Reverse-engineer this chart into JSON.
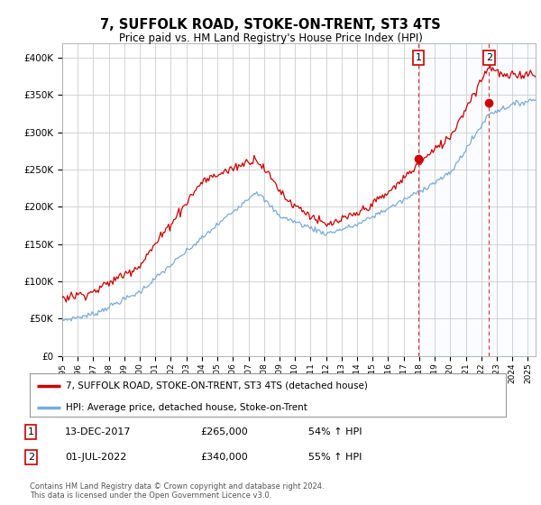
{
  "title": "7, SUFFOLK ROAD, STOKE-ON-TRENT, ST3 4TS",
  "subtitle": "Price paid vs. HM Land Registry's House Price Index (HPI)",
  "ylabel_ticks": [
    "£0",
    "£50K",
    "£100K",
    "£150K",
    "£200K",
    "£250K",
    "£300K",
    "£350K",
    "£400K"
  ],
  "ytick_vals": [
    0,
    50000,
    100000,
    150000,
    200000,
    250000,
    300000,
    350000,
    400000
  ],
  "ylim": [
    0,
    420000
  ],
  "xlim_start": 1995.0,
  "xlim_end": 2025.5,
  "background_color": "#ffffff",
  "plot_bg_color": "#ffffff",
  "grid_color": "#cccccc",
  "hpi_line_color": "#7aabdc",
  "price_line_color": "#cc0000",
  "shade_color": "#ddeeff",
  "sale1_date": 2017.958,
  "sale1_price": 265000,
  "sale2_date": 2022.5,
  "sale2_price": 340000,
  "legend_line1": "7, SUFFOLK ROAD, STOKE-ON-TRENT, ST3 4TS (detached house)",
  "legend_line2": "HPI: Average price, detached house, Stoke-on-Trent",
  "annotation1_label": "1",
  "annotation1_date_str": "13-DEC-2017",
  "annotation1_price_str": "£265,000",
  "annotation1_hpi_str": "54% ↑ HPI",
  "annotation2_label": "2",
  "annotation2_date_str": "01-JUL-2022",
  "annotation2_price_str": "£340,000",
  "annotation2_hpi_str": "55% ↑ HPI",
  "footer": "Contains HM Land Registry data © Crown copyright and database right 2024.\nThis data is licensed under the Open Government Licence v3.0.",
  "xtick_years": [
    1995,
    1996,
    1997,
    1998,
    1999,
    2000,
    2001,
    2002,
    2003,
    2004,
    2005,
    2006,
    2007,
    2008,
    2009,
    2010,
    2011,
    2012,
    2013,
    2014,
    2015,
    2016,
    2017,
    2018,
    2019,
    2020,
    2021,
    2022,
    2023,
    2024,
    2025
  ]
}
